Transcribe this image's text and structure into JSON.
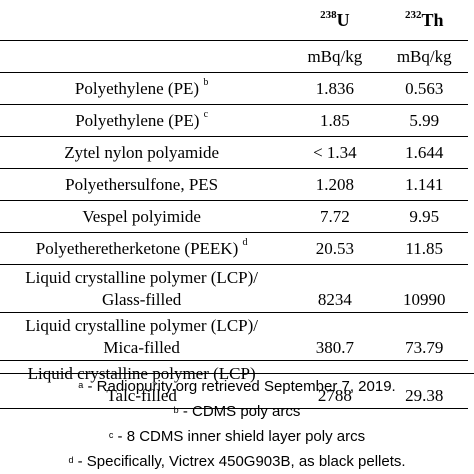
{
  "table": {
    "isotopes": [
      {
        "mass": "238",
        "symbol": "U"
      },
      {
        "mass": "232",
        "symbol": "Th"
      }
    ],
    "units": [
      "mBq/kg",
      "mBq/kg"
    ],
    "rows": [
      {
        "material": "Polyethylene (PE)",
        "note": "b",
        "u238": "1.836",
        "th232": "0.563"
      },
      {
        "material": "Polyethylene (PE)",
        "note": "c",
        "u238": "1.85",
        "th232": "5.99"
      },
      {
        "material": "Zytel nylon polyamide",
        "note": "",
        "u238": "< 1.34",
        "th232": "1.644"
      },
      {
        "material": "Polyethersulfone, PES",
        "note": "",
        "u238": "1.208",
        "th232": "1.141"
      },
      {
        "material": "Vespel polyimide",
        "note": "",
        "u238": "7.72",
        "th232": "9.95"
      },
      {
        "material": "Polyetheretherketone (PEEK)",
        "note": "d",
        "u238": "20.53",
        "th232": "11.85"
      },
      {
        "material_line1": "Liquid crystalline polymer (LCP)/",
        "material_line2": "Glass-filled",
        "u238": "8234",
        "th232": "10990"
      },
      {
        "material_line1": "Liquid crystalline polymer (LCP)/",
        "material_line2": "Mica-filled",
        "u238": "380.7",
        "th232": "73.79"
      },
      {
        "material_line1": "Liquid crystalline polymer (LCP)",
        "material_line2": "Talc-filled",
        "u238": "2788",
        "th232": "29.38"
      }
    ]
  },
  "footnotes": [
    {
      "mark": "a",
      "text": " - Radiopurity.org retrieved September 7, 2019."
    },
    {
      "mark": "b",
      "text": " - CDMS poly arcs"
    },
    {
      "mark": "c",
      "text": " - 8 CDMS inner shield layer poly arcs"
    },
    {
      "mark": "d",
      "text": " - Specifically, Victrex 450G903B, as black pellets."
    }
  ]
}
